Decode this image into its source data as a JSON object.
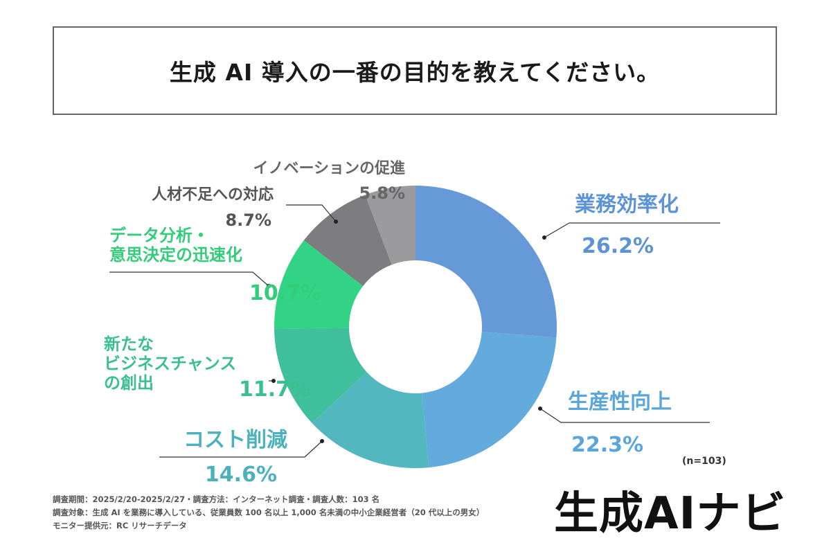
{
  "title": "生成 AI 導入の一番の目的を教えてください。",
  "chart_data": {
    "type": "pie",
    "donut": true,
    "categories": [
      "業務効率化",
      "生産性向上",
      "コスト削減",
      "新たなビジネスチャンスの創出",
      "データ分析・意思決定の迅速化",
      "人材不足への対応",
      "イノベーションの促進"
    ],
    "values": [
      26.2,
      22.3,
      14.6,
      11.7,
      10.7,
      8.7,
      5.8
    ],
    "value_labels": [
      "26.2%",
      "22.3%",
      "14.6%",
      "11.7%",
      "10.7%",
      "8.7%",
      "5.8%"
    ],
    "label_lines": [
      [
        "業務効率化"
      ],
      [
        "生産性向上"
      ],
      [
        "コスト削減"
      ],
      [
        "新たな",
        "ビジネスチャンス",
        "の創出"
      ],
      [
        "データ分析・",
        "意思決定の迅速化"
      ],
      [
        "人材不足への対応"
      ],
      [
        "イノベーションの促進"
      ]
    ],
    "colors": [
      "#6699d8",
      "#62abdc",
      "#52b7bf",
      "#3fbf9b",
      "#33d386",
      "#7d7d80",
      "#9b9b9e"
    ],
    "label_colors": [
      "#5b93d6",
      "#5aa6da",
      "#4bb2bd",
      "#3cbf8f",
      "#33cc7a",
      "#555555",
      "#666666"
    ],
    "note": "(n=103)"
  },
  "footer": {
    "line1": "調査期間：2025/2/20-2025/2/27・調査方法：インターネット調査・調査人数：103 名",
    "line2": "調査対象：生成 AI を業務に導入している、従業員数 100 名以上 1,000 名未満の中小企業経営者（20 代以上の男女）",
    "line3": "モニター提供元：RC リサーチデータ"
  },
  "logo": "生成AIナビ"
}
